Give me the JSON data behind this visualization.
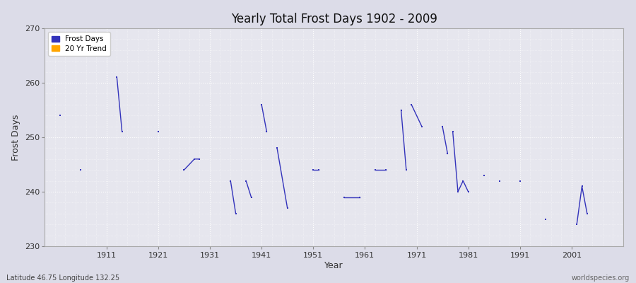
{
  "title": "Yearly Total Frost Days 1902 - 2009",
  "xlabel": "Year",
  "ylabel": "Frost Days",
  "xlim": [
    1899,
    2011
  ],
  "ylim": [
    230,
    270
  ],
  "yticks": [
    230,
    240,
    250,
    260,
    270
  ],
  "xticks": [
    1911,
    1921,
    1931,
    1941,
    1951,
    1961,
    1971,
    1981,
    1991,
    2001
  ],
  "line_color": "#3333bb",
  "marker_color": "#3333bb",
  "bg_color": "#e6e6ee",
  "outer_bg": "#dcdce8",
  "grid_color": "#ffffff",
  "subtitle_left": "Latitude 46.75 Longitude 132.25",
  "subtitle_right": "worldspecies.org",
  "legend_frost": "Frost Days",
  "legend_trend": "20 Yr Trend",
  "groups": [
    [
      [
        1902,
        254
      ]
    ],
    [
      [
        1906,
        244
      ]
    ],
    [
      [
        1913,
        261
      ],
      [
        1914,
        251
      ]
    ],
    [
      [
        1921,
        251
      ]
    ],
    [
      [
        1926,
        244
      ],
      [
        1928,
        246
      ],
      [
        1929,
        246
      ]
    ],
    [
      [
        1935,
        242
      ],
      [
        1936,
        236
      ]
    ],
    [
      [
        1938,
        242
      ],
      [
        1939,
        239
      ]
    ],
    [
      [
        1941,
        256
      ],
      [
        1942,
        251
      ]
    ],
    [
      [
        1944,
        248
      ],
      [
        1946,
        237
      ]
    ],
    [
      [
        1951,
        244
      ],
      [
        1952,
        244
      ]
    ],
    [
      [
        1957,
        239
      ],
      [
        1960,
        239
      ]
    ],
    [
      [
        1963,
        244
      ],
      [
        1965,
        244
      ]
    ],
    [
      [
        1968,
        255
      ],
      [
        1969,
        244
      ]
    ],
    [
      [
        1970,
        256
      ],
      [
        1972,
        252
      ]
    ],
    [
      [
        1976,
        252
      ],
      [
        1977,
        247
      ]
    ],
    [
      [
        1978,
        251
      ],
      [
        1979,
        240
      ],
      [
        1980,
        242
      ],
      [
        1981,
        240
      ]
    ],
    [
      [
        1984,
        243
      ]
    ],
    [
      [
        1987,
        242
      ]
    ],
    [
      [
        1991,
        242
      ]
    ],
    [
      [
        1996,
        235
      ]
    ],
    [
      [
        2002,
        234
      ],
      [
        2003,
        241
      ],
      [
        2004,
        236
      ]
    ]
  ]
}
